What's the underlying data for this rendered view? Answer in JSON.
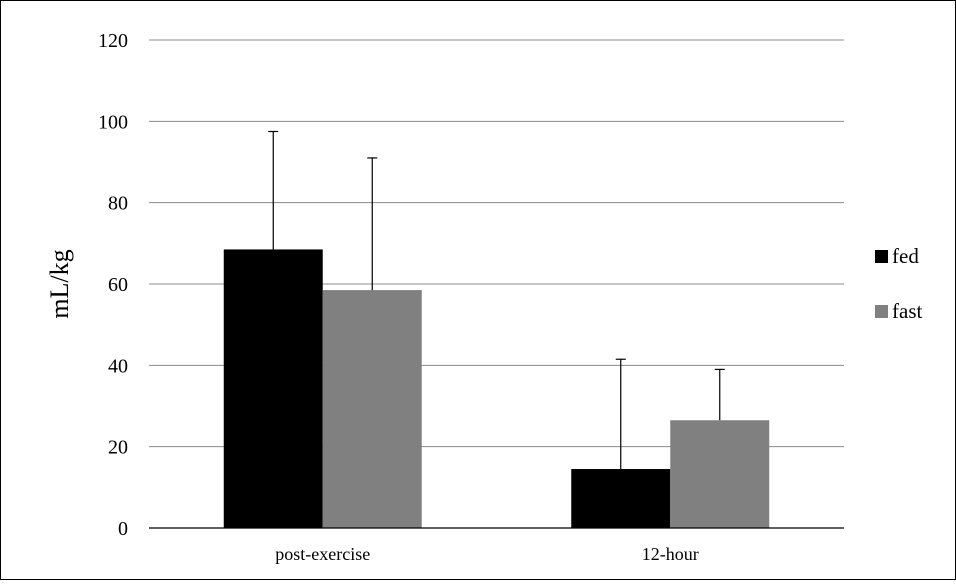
{
  "chart_data": {
    "type": "bar",
    "title": "",
    "xlabel": "",
    "ylabel": "mL/kg",
    "ylim": [
      0,
      120
    ],
    "yticks": [
      0,
      20,
      40,
      60,
      80,
      100,
      120
    ],
    "categories": [
      "post-exercise",
      "12-hour"
    ],
    "series": [
      {
        "name": "fed",
        "color": "#000000",
        "values": [
          68.5,
          14.5
        ],
        "error": [
          29,
          27
        ]
      },
      {
        "name": "fast",
        "color": "#808080",
        "values": [
          58.5,
          26.5
        ],
        "error": [
          32.5,
          12.5
        ]
      }
    ],
    "grid": true,
    "legend_position": "right"
  }
}
